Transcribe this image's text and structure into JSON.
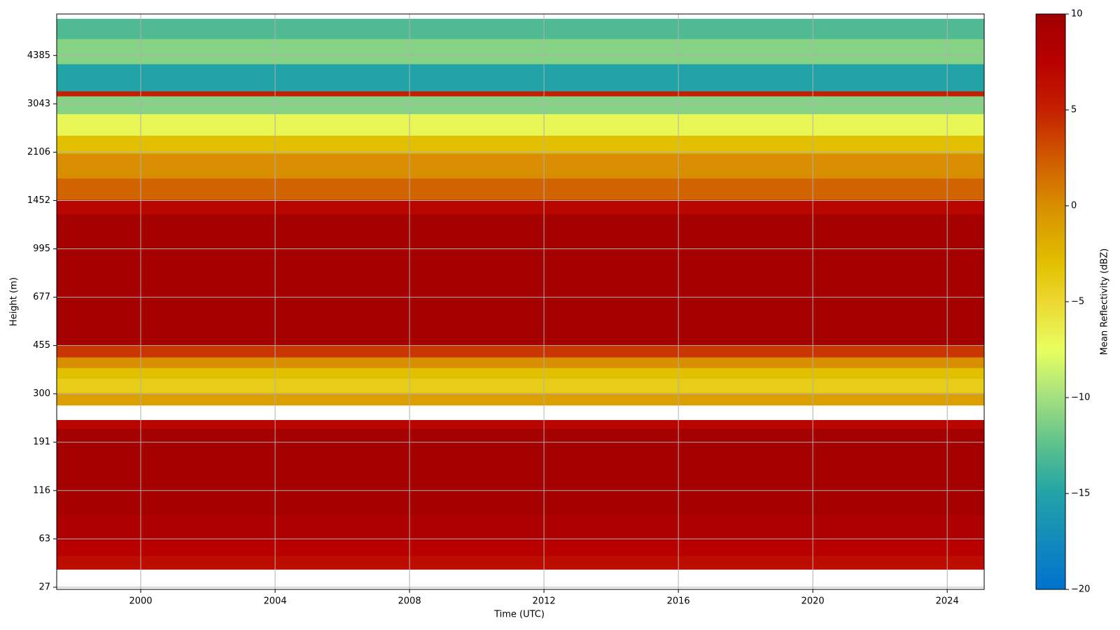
{
  "chart_data": {
    "type": "heatmap",
    "xlabel": "Time (UTC)",
    "ylabel": "Height (m)",
    "colorbar_label": "Mean Reflectivity (dBZ)",
    "xlim": [
      1997.5,
      2025.1
    ],
    "xticks": [
      2000,
      2004,
      2008,
      2012,
      2016,
      2020,
      2024
    ],
    "ylim": [
      26,
      6000
    ],
    "yticks": [
      27,
      63,
      116,
      191,
      300,
      455,
      677,
      995,
      1452,
      2106,
      3043,
      4385
    ],
    "yscale": "tick-spaced",
    "y_edges": [
      37,
      47,
      61,
      86,
      217,
      235,
      270,
      303,
      343,
      376,
      412,
      455,
      1307,
      1462,
      1724,
      2090,
      2394,
      2820,
      3229,
      3353,
      4117,
      4977,
      5788
    ],
    "values": [
      6.5,
      7.5,
      8.5,
      9.5,
      7,
      null,
      -1,
      -4,
      -3,
      0,
      4,
      9.5,
      7,
      2,
      0,
      -3,
      -7,
      -11,
      5,
      -15,
      -11,
      -13
    ],
    "clim": [
      -20,
      10
    ],
    "cticks": [
      {
        "value": -20,
        "label": "−20"
      },
      {
        "value": -15,
        "label": "−15"
      },
      {
        "value": -10,
        "label": "−10"
      },
      {
        "value": -5,
        "label": "−5"
      },
      0,
      5,
      10
    ],
    "colorscale": [
      {
        "value": -20,
        "color": "#0072cf"
      },
      {
        "value": -15,
        "color": "#22a3a8"
      },
      {
        "value": -12.5,
        "color": "#5cc08c"
      },
      {
        "value": -10,
        "color": "#a4e080"
      },
      {
        "value": -7.5,
        "color": "#e8ff60"
      },
      {
        "value": -5,
        "color": "#ecd830"
      },
      {
        "value": -3,
        "color": "#e2c000"
      },
      {
        "value": 0,
        "color": "#d88e00"
      },
      {
        "value": 2.5,
        "color": "#d05a00"
      },
      {
        "value": 5,
        "color": "#c42000"
      },
      {
        "value": 7.5,
        "color": "#b80000"
      },
      {
        "value": 10,
        "color": "#a00000"
      }
    ],
    "grid": true
  }
}
